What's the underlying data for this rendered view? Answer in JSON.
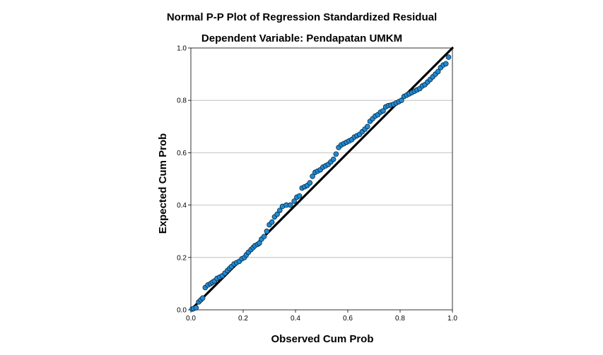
{
  "chart_data": {
    "type": "scatter",
    "title": "Normal P-P Plot of Regression Standardized Residual",
    "subtitle": "Dependent Variable: Pendapatan UMKM",
    "xlabel": "Observed Cum Prob",
    "ylabel": "Expected Cum Prob",
    "xlim": [
      0.0,
      1.0
    ],
    "ylim": [
      0.0,
      1.0
    ],
    "x_ticks": [
      "0.0",
      "0.2",
      "0.4",
      "0.6",
      "0.8",
      "1.0"
    ],
    "y_ticks": [
      "0.0",
      "0.2",
      "0.4",
      "0.6",
      "0.8",
      "1.0"
    ],
    "grid": "horizontal",
    "reference_line": {
      "from": [
        0,
        0
      ],
      "to": [
        1,
        1
      ],
      "color": "#000000"
    },
    "point_color": "#1f8ad4",
    "point_edge_color": "#0b2a40",
    "points": [
      [
        0.005,
        0.003
      ],
      [
        0.01,
        0.005
      ],
      [
        0.02,
        0.008
      ],
      [
        0.03,
        0.03
      ],
      [
        0.038,
        0.038
      ],
      [
        0.045,
        0.045
      ],
      [
        0.055,
        0.085
      ],
      [
        0.065,
        0.095
      ],
      [
        0.075,
        0.1
      ],
      [
        0.082,
        0.105
      ],
      [
        0.09,
        0.11
      ],
      [
        0.1,
        0.12
      ],
      [
        0.11,
        0.125
      ],
      [
        0.12,
        0.13
      ],
      [
        0.13,
        0.14
      ],
      [
        0.14,
        0.15
      ],
      [
        0.148,
        0.158
      ],
      [
        0.155,
        0.165
      ],
      [
        0.165,
        0.175
      ],
      [
        0.175,
        0.18
      ],
      [
        0.185,
        0.185
      ],
      [
        0.195,
        0.195
      ],
      [
        0.205,
        0.2
      ],
      [
        0.212,
        0.21
      ],
      [
        0.22,
        0.22
      ],
      [
        0.23,
        0.23
      ],
      [
        0.238,
        0.238
      ],
      [
        0.245,
        0.245
      ],
      [
        0.255,
        0.25
      ],
      [
        0.262,
        0.255
      ],
      [
        0.27,
        0.27
      ],
      [
        0.28,
        0.28
      ],
      [
        0.29,
        0.3
      ],
      [
        0.3,
        0.325
      ],
      [
        0.31,
        0.335
      ],
      [
        0.32,
        0.355
      ],
      [
        0.33,
        0.365
      ],
      [
        0.34,
        0.38
      ],
      [
        0.35,
        0.395
      ],
      [
        0.365,
        0.4
      ],
      [
        0.38,
        0.4
      ],
      [
        0.395,
        0.415
      ],
      [
        0.405,
        0.43
      ],
      [
        0.415,
        0.435
      ],
      [
        0.425,
        0.465
      ],
      [
        0.435,
        0.47
      ],
      [
        0.445,
        0.475
      ],
      [
        0.455,
        0.485
      ],
      [
        0.465,
        0.51
      ],
      [
        0.475,
        0.525
      ],
      [
        0.485,
        0.53
      ],
      [
        0.495,
        0.535
      ],
      [
        0.505,
        0.545
      ],
      [
        0.515,
        0.55
      ],
      [
        0.525,
        0.555
      ],
      [
        0.535,
        0.565
      ],
      [
        0.545,
        0.575
      ],
      [
        0.555,
        0.595
      ],
      [
        0.565,
        0.62
      ],
      [
        0.575,
        0.63
      ],
      [
        0.585,
        0.635
      ],
      [
        0.595,
        0.64
      ],
      [
        0.605,
        0.645
      ],
      [
        0.615,
        0.65
      ],
      [
        0.625,
        0.66
      ],
      [
        0.635,
        0.665
      ],
      [
        0.645,
        0.67
      ],
      [
        0.655,
        0.68
      ],
      [
        0.665,
        0.69
      ],
      [
        0.675,
        0.7
      ],
      [
        0.685,
        0.72
      ],
      [
        0.695,
        0.73
      ],
      [
        0.705,
        0.74
      ],
      [
        0.715,
        0.745
      ],
      [
        0.725,
        0.755
      ],
      [
        0.735,
        0.76
      ],
      [
        0.745,
        0.775
      ],
      [
        0.755,
        0.78
      ],
      [
        0.765,
        0.782
      ],
      [
        0.775,
        0.785
      ],
      [
        0.785,
        0.79
      ],
      [
        0.795,
        0.795
      ],
      [
        0.805,
        0.8
      ],
      [
        0.815,
        0.815
      ],
      [
        0.825,
        0.82
      ],
      [
        0.835,
        0.825
      ],
      [
        0.845,
        0.83
      ],
      [
        0.855,
        0.835
      ],
      [
        0.865,
        0.84
      ],
      [
        0.875,
        0.845
      ],
      [
        0.885,
        0.855
      ],
      [
        0.895,
        0.86
      ],
      [
        0.905,
        0.87
      ],
      [
        0.915,
        0.88
      ],
      [
        0.925,
        0.89
      ],
      [
        0.935,
        0.9
      ],
      [
        0.945,
        0.91
      ],
      [
        0.955,
        0.925
      ],
      [
        0.965,
        0.935
      ],
      [
        0.975,
        0.94
      ],
      [
        0.985,
        0.965
      ]
    ]
  }
}
